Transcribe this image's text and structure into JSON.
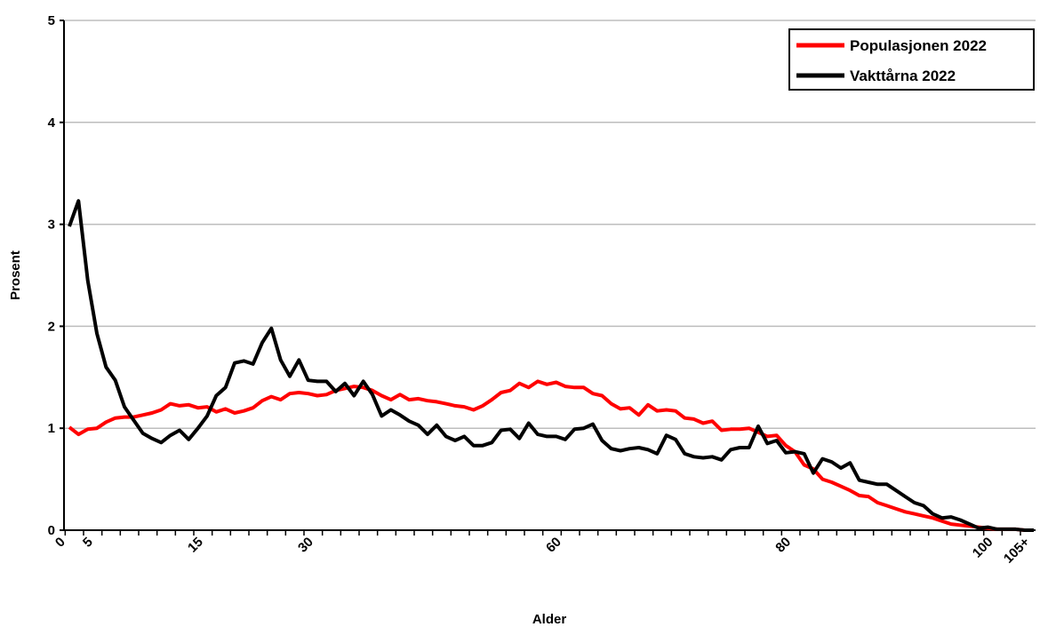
{
  "chart_data": {
    "type": "line",
    "x_label": "Alder",
    "y_label": "Prosent",
    "categories": [
      "0",
      null,
      null,
      "5",
      null,
      null,
      null,
      null,
      null,
      null,
      null,
      null,
      null,
      null,
      null,
      "15",
      null,
      null,
      null,
      null,
      null,
      null,
      null,
      null,
      null,
      null,
      null,
      "30",
      null,
      null,
      null,
      null,
      null,
      null,
      null,
      null,
      null,
      null,
      null,
      null,
      null,
      null,
      null,
      null,
      null,
      null,
      null,
      null,
      null,
      null,
      null,
      null,
      null,
      null,
      "60",
      null,
      null,
      null,
      null,
      null,
      null,
      null,
      null,
      null,
      null,
      null,
      null,
      null,
      null,
      null,
      null,
      null,
      null,
      null,
      null,
      null,
      null,
      null,
      null,
      "80",
      null,
      null,
      null,
      null,
      null,
      null,
      null,
      null,
      null,
      null,
      null,
      null,
      null,
      null,
      null,
      null,
      null,
      null,
      null,
      null,
      null,
      "100",
      null,
      null,
      null,
      "105+"
    ],
    "series": [
      {
        "name": "Populasjonen 2022",
        "color": "#ff0000",
        "values": [
          1.01,
          0.94,
          0.99,
          1.0,
          1.06,
          1.1,
          1.11,
          1.11,
          1.13,
          1.15,
          1.18,
          1.24,
          1.22,
          1.23,
          1.2,
          1.21,
          1.16,
          1.19,
          1.15,
          1.17,
          1.2,
          1.27,
          1.31,
          1.28,
          1.34,
          1.35,
          1.34,
          1.32,
          1.33,
          1.37,
          1.39,
          1.41,
          1.4,
          1.37,
          1.32,
          1.28,
          1.33,
          1.28,
          1.29,
          1.27,
          1.26,
          1.24,
          1.22,
          1.21,
          1.18,
          1.22,
          1.28,
          1.35,
          1.37,
          1.44,
          1.4,
          1.46,
          1.43,
          1.45,
          1.41,
          1.4,
          1.4,
          1.34,
          1.32,
          1.24,
          1.19,
          1.2,
          1.13,
          1.23,
          1.17,
          1.18,
          1.17,
          1.1,
          1.09,
          1.05,
          1.07,
          0.98,
          0.99,
          0.99,
          1.0,
          0.96,
          0.92,
          0.93,
          0.83,
          0.77,
          0.64,
          0.6,
          0.5,
          0.47,
          0.43,
          0.39,
          0.34,
          0.33,
          0.27,
          0.24,
          0.21,
          0.18,
          0.16,
          0.14,
          0.12,
          0.09,
          0.06,
          0.05,
          0.04,
          0.03,
          0.02,
          0.01,
          0.01,
          0.01,
          0.0,
          0.0
        ]
      },
      {
        "name": "Vakttårna 2022",
        "color": "#000000",
        "values": [
          2.98,
          3.23,
          2.45,
          1.93,
          1.6,
          1.47,
          1.21,
          1.08,
          0.95,
          0.9,
          0.86,
          0.93,
          0.98,
          0.89,
          1.0,
          1.12,
          1.32,
          1.4,
          1.64,
          1.66,
          1.63,
          1.84,
          1.98,
          1.67,
          1.51,
          1.67,
          1.47,
          1.46,
          1.46,
          1.36,
          1.44,
          1.32,
          1.46,
          1.33,
          1.12,
          1.18,
          1.13,
          1.07,
          1.03,
          0.94,
          1.03,
          0.92,
          0.88,
          0.92,
          0.83,
          0.83,
          0.86,
          0.98,
          0.99,
          0.9,
          1.05,
          0.94,
          0.92,
          0.92,
          0.89,
          0.99,
          1.0,
          1.04,
          0.88,
          0.8,
          0.78,
          0.8,
          0.81,
          0.79,
          0.75,
          0.93,
          0.89,
          0.75,
          0.72,
          0.71,
          0.72,
          0.69,
          0.79,
          0.81,
          0.81,
          1.02,
          0.85,
          0.88,
          0.76,
          0.77,
          0.75,
          0.56,
          0.7,
          0.67,
          0.61,
          0.66,
          0.49,
          0.47,
          0.45,
          0.45,
          0.39,
          0.33,
          0.27,
          0.24,
          0.16,
          0.12,
          0.13,
          0.1,
          0.06,
          0.02,
          0.03,
          0.01,
          0.01,
          0.01,
          0.0,
          0.0
        ]
      }
    ],
    "ylim": [
      0,
      5
    ],
    "yticks": [
      0,
      1,
      2,
      3,
      4,
      5
    ],
    "grid": true,
    "legend": "top-right"
  }
}
